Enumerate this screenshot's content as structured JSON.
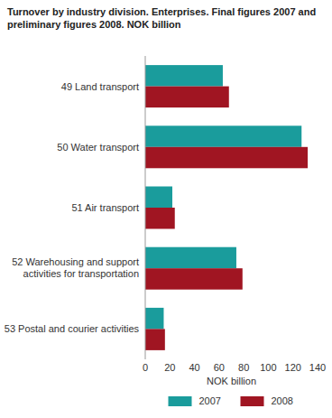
{
  "chart_data": {
    "type": "bar",
    "orientation": "horizontal",
    "title": "Turnover by industry division. Enterprises. Final figures 2007 and preliminary figures 2008. NOK billion",
    "categories": [
      "49 Land transport",
      "50 Water transport",
      "51 Air transport",
      "52 Warehousing and support activities for transportation",
      "53 Postal and courier activities"
    ],
    "series": [
      {
        "name": "2007",
        "color": "#1a9c9c",
        "values": [
          63,
          127,
          22,
          74,
          15
        ]
      },
      {
        "name": "2008",
        "color": "#a01522",
        "values": [
          68,
          132,
          24,
          79,
          16
        ]
      }
    ],
    "x_label": "NOK billion",
    "xlim": [
      0,
      140
    ],
    "xticks": [
      0,
      20,
      40,
      60,
      80,
      100,
      120,
      140
    ],
    "grid": false,
    "legend": "bottom"
  }
}
